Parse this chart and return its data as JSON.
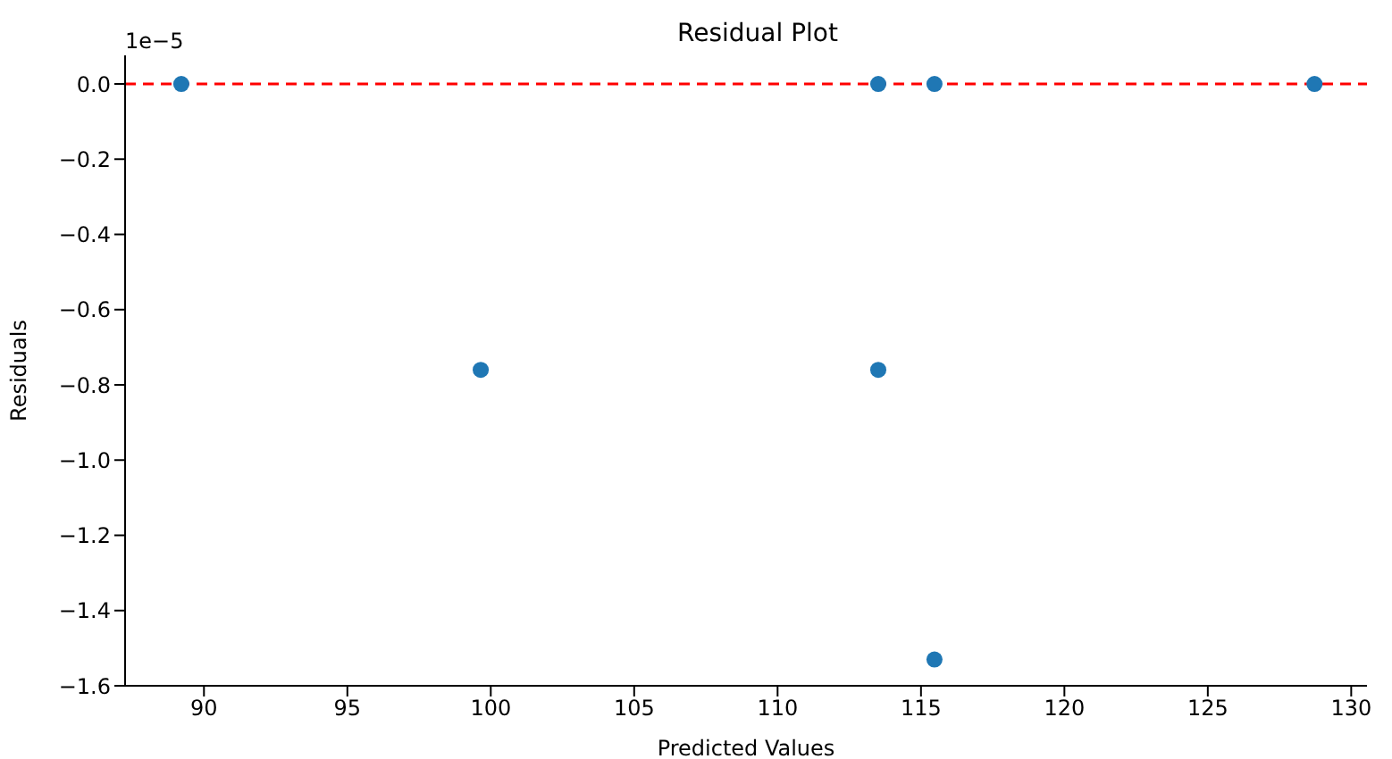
{
  "chart_data": {
    "type": "scatter",
    "title": "Residual Plot",
    "xlabel": "Predicted Values",
    "ylabel": "Residuals",
    "annotations": [
      "1e−5"
    ],
    "series": [
      {
        "color": "#1f77b4",
        "x": [
          89.21,
          99.65,
          113.51,
          113.51,
          115.47,
          115.47,
          128.72
        ],
        "values": [
          0,
          -0.76,
          0,
          -0.76,
          0,
          -1.53,
          0
        ]
      }
    ],
    "xlim": [
      87.25,
      130.55
    ],
    "xticks": [
      90,
      95,
      100,
      105,
      110,
      115,
      120,
      125,
      130
    ],
    "ylim": [
      -1.6,
      0.076
    ],
    "yticks": [
      {
        "value": 0,
        "label": "0.0"
      },
      {
        "value": -0.2,
        "label": "−0.2"
      },
      {
        "value": -0.4,
        "label": "−0.4"
      },
      {
        "value": -0.6,
        "label": "−0.6"
      },
      {
        "value": -0.8,
        "label": "−0.8"
      },
      {
        "value": -1,
        "label": "−1.0"
      },
      {
        "value": -1.2,
        "label": "−1.2"
      },
      {
        "value": -1.4,
        "label": "−1.4"
      },
      {
        "value": -1.6,
        "label": "−1.6"
      }
    ],
    "ref_lines": [
      {
        "axis": "y",
        "value": 0,
        "color": "#ff0000",
        "line_style": "dashed"
      }
    ],
    "marker": "circle",
    "grid": false
  }
}
